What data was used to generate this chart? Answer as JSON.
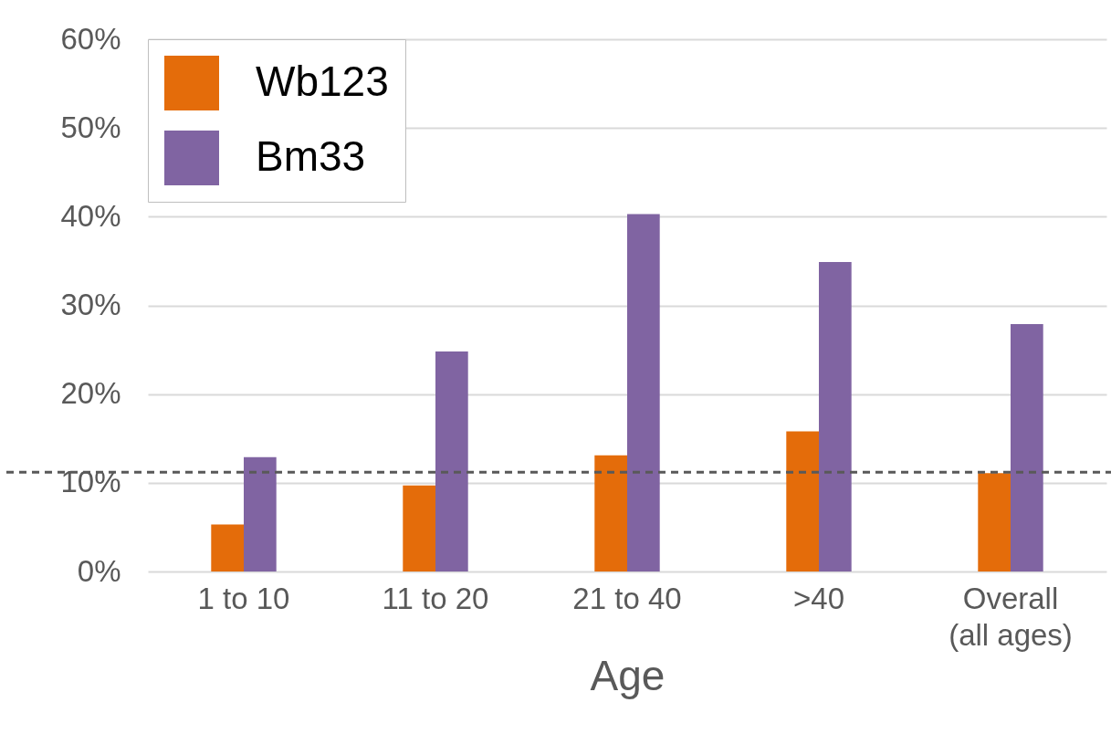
{
  "chart_data": {
    "type": "bar",
    "xlabel": "Age",
    "categories": [
      "1 to 10",
      "11 to 20",
      "21 to 40",
      ">40",
      "Overall (all ages)"
    ],
    "series": [
      {
        "name": "Wb123",
        "color": "#e46c0a",
        "values": [
          5.3,
          9.7,
          13.1,
          15.8,
          11.1
        ]
      },
      {
        "name": "Bm33",
        "color": "#8064a2",
        "values": [
          12.9,
          24.8,
          40.3,
          34.9,
          27.9
        ]
      }
    ],
    "ylim": [
      0,
      60
    ],
    "yticks": [
      {
        "value": 0,
        "label": "0%"
      },
      {
        "value": 10,
        "label": "10%"
      },
      {
        "value": 20,
        "label": "20%"
      },
      {
        "value": 30,
        "label": "30%"
      },
      {
        "value": 40,
        "label": "40%"
      },
      {
        "value": 50,
        "label": "50%"
      },
      {
        "value": 60,
        "label": "60%"
      }
    ],
    "ref_lines": [
      {
        "axis": "y",
        "value": 11.2,
        "color": "#595959",
        "line_style": "dashed"
      }
    ],
    "grid": "y",
    "legend": "top left"
  }
}
